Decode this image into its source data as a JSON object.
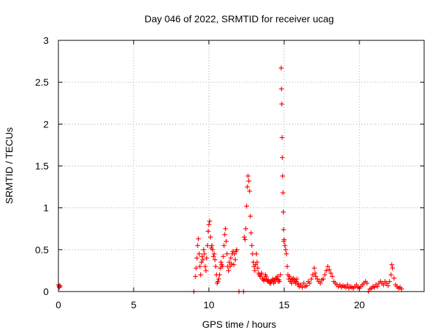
{
  "chart_data": {
    "type": "scatter",
    "title": "Day 046 of 2022, SRMTID for receiver ucag",
    "xlabel": "GPS time / hours",
    "ylabel": "SRMTID / TECUs",
    "xlim": [
      0,
      24.3
    ],
    "ylim": [
      0,
      3
    ],
    "x_ticks": [
      0,
      5,
      10,
      15,
      20
    ],
    "y_ticks": [
      0,
      0.5,
      1,
      1.5,
      2,
      2.5,
      3
    ],
    "x_tick_labels": [
      "0",
      "5",
      "10",
      "15",
      "20"
    ],
    "y_tick_labels": [
      "0",
      "0.5",
      "1",
      "1.5",
      "2",
      "2.5",
      "3"
    ],
    "grid": true,
    "legend": "none",
    "marker": "plus",
    "series_color": "#ff0000",
    "series": [
      {
        "values": [
          [
            0.0,
            0.08
          ],
          [
            0.05,
            0.06
          ],
          [
            0.1,
            0.07
          ],
          [
            0.08,
            0.05
          ],
          [
            9.0,
            0.0
          ],
          [
            9.1,
            0.18
          ],
          [
            9.15,
            0.28
          ],
          [
            9.2,
            0.4
          ],
          [
            9.25,
            0.55
          ],
          [
            9.3,
            0.63
          ],
          [
            9.35,
            0.45
          ],
          [
            9.4,
            0.3
          ],
          [
            9.45,
            0.2
          ],
          [
            9.5,
            0.35
          ],
          [
            9.55,
            0.42
          ],
          [
            9.6,
            0.38
          ],
          [
            9.65,
            0.5
          ],
          [
            9.7,
            0.45
          ],
          [
            9.75,
            0.3
          ],
          [
            9.8,
            0.25
          ],
          [
            9.85,
            0.4
          ],
          [
            9.9,
            0.55
          ],
          [
            9.95,
            0.72
          ],
          [
            10.0,
            0.8
          ],
          [
            10.05,
            0.84
          ],
          [
            10.1,
            0.65
          ],
          [
            10.15,
            0.52
          ],
          [
            10.2,
            0.55
          ],
          [
            10.25,
            0.5
          ],
          [
            10.3,
            0.42
          ],
          [
            10.35,
            0.45
          ],
          [
            10.4,
            0.38
          ],
          [
            10.45,
            0.3
          ],
          [
            10.5,
            0.2
          ],
          [
            10.55,
            0.1
          ],
          [
            10.6,
            0.12
          ],
          [
            10.65,
            0.15
          ],
          [
            10.7,
            0.2
          ],
          [
            10.75,
            0.28
          ],
          [
            10.8,
            0.35
          ],
          [
            10.85,
            0.32
          ],
          [
            10.9,
            0.3
          ],
          [
            10.95,
            0.42
          ],
          [
            11.0,
            0.55
          ],
          [
            11.05,
            0.68
          ],
          [
            11.1,
            0.75
          ],
          [
            11.15,
            0.6
          ],
          [
            11.2,
            0.45
          ],
          [
            11.25,
            0.3
          ],
          [
            11.3,
            0.25
          ],
          [
            11.35,
            0.35
          ],
          [
            11.4,
            0.3
          ],
          [
            11.45,
            0.4
          ],
          [
            11.5,
            0.33
          ],
          [
            11.55,
            0.45
          ],
          [
            11.6,
            0.48
          ],
          [
            11.65,
            0.32
          ],
          [
            11.7,
            0.45
          ],
          [
            11.75,
            0.38
          ],
          [
            11.8,
            0.48
          ],
          [
            11.85,
            0.5
          ],
          [
            12.0,
            0.0
          ],
          [
            12.3,
            0.0
          ],
          [
            12.35,
            0.65
          ],
          [
            12.4,
            0.62
          ],
          [
            12.45,
            0.75
          ],
          [
            12.5,
            1.02
          ],
          [
            12.55,
            1.25
          ],
          [
            12.6,
            1.38
          ],
          [
            12.65,
            1.32
          ],
          [
            12.7,
            1.2
          ],
          [
            12.75,
            0.9
          ],
          [
            12.8,
            0.7
          ],
          [
            12.85,
            0.55
          ],
          [
            12.9,
            0.45
          ],
          [
            12.95,
            0.35
          ],
          [
            13.0,
            0.3
          ],
          [
            13.05,
            0.25
          ],
          [
            13.1,
            0.32
          ],
          [
            13.15,
            0.45
          ],
          [
            13.2,
            0.35
          ],
          [
            13.25,
            0.28
          ],
          [
            13.3,
            0.22
          ],
          [
            13.35,
            0.2
          ],
          [
            13.4,
            0.18
          ],
          [
            13.45,
            0.2
          ],
          [
            13.5,
            0.22
          ],
          [
            13.55,
            0.15
          ],
          [
            13.6,
            0.15
          ],
          [
            13.65,
            0.13
          ],
          [
            13.7,
            0.15
          ],
          [
            13.75,
            0.2
          ],
          [
            13.8,
            0.18
          ],
          [
            13.85,
            0.14
          ],
          [
            13.9,
            0.12
          ],
          [
            13.95,
            0.14
          ],
          [
            14.0,
            0.12
          ],
          [
            14.05,
            0.1
          ],
          [
            14.1,
            0.1
          ],
          [
            14.15,
            0.12
          ],
          [
            14.2,
            0.13
          ],
          [
            14.25,
            0.15
          ],
          [
            14.3,
            0.1
          ],
          [
            14.35,
            0.14
          ],
          [
            14.4,
            0.12
          ],
          [
            14.45,
            0.16
          ],
          [
            14.5,
            0.15
          ],
          [
            14.55,
            0.18
          ],
          [
            14.6,
            0.12
          ],
          [
            14.65,
            0.14
          ],
          [
            14.7,
            0.12
          ],
          [
            14.75,
            0.2
          ],
          [
            14.8,
            2.67
          ],
          [
            14.82,
            2.42
          ],
          [
            14.84,
            2.24
          ],
          [
            14.86,
            1.84
          ],
          [
            14.88,
            1.6
          ],
          [
            14.9,
            1.38
          ],
          [
            14.92,
            1.18
          ],
          [
            14.94,
            0.95
          ],
          [
            14.96,
            0.74
          ],
          [
            14.98,
            0.6
          ],
          [
            15.0,
            0.62
          ],
          [
            15.05,
            0.55
          ],
          [
            15.1,
            0.5
          ],
          [
            15.15,
            0.45
          ],
          [
            15.2,
            0.3
          ],
          [
            15.25,
            0.2
          ],
          [
            15.3,
            0.15
          ],
          [
            15.35,
            0.18
          ],
          [
            15.4,
            0.12
          ],
          [
            15.45,
            0.15
          ],
          [
            15.5,
            0.1
          ],
          [
            15.55,
            0.14
          ],
          [
            15.6,
            0.16
          ],
          [
            15.65,
            0.12
          ],
          [
            15.7,
            0.14
          ],
          [
            15.75,
            0.1
          ],
          [
            15.8,
            0.12
          ],
          [
            15.85,
            0.15
          ],
          [
            15.9,
            0.1
          ],
          [
            15.95,
            0.08
          ],
          [
            16.0,
            0.06
          ],
          [
            16.1,
            0.08
          ],
          [
            16.2,
            0.05
          ],
          [
            16.3,
            0.1
          ],
          [
            16.4,
            0.06
          ],
          [
            16.5,
            0.07
          ],
          [
            16.6,
            0.12
          ],
          [
            16.7,
            0.1
          ],
          [
            16.8,
            0.15
          ],
          [
            16.9,
            0.2
          ],
          [
            17.0,
            0.28
          ],
          [
            17.05,
            0.22
          ],
          [
            17.1,
            0.18
          ],
          [
            17.2,
            0.15
          ],
          [
            17.3,
            0.12
          ],
          [
            17.4,
            0.1
          ],
          [
            17.5,
            0.14
          ],
          [
            17.6,
            0.15
          ],
          [
            17.7,
            0.2
          ],
          [
            17.8,
            0.25
          ],
          [
            17.9,
            0.3
          ],
          [
            18.0,
            0.26
          ],
          [
            18.1,
            0.22
          ],
          [
            18.2,
            0.18
          ],
          [
            18.3,
            0.12
          ],
          [
            18.4,
            0.1
          ],
          [
            18.5,
            0.08
          ],
          [
            18.6,
            0.06
          ],
          [
            18.7,
            0.08
          ],
          [
            18.8,
            0.05
          ],
          [
            18.9,
            0.07
          ],
          [
            19.0,
            0.06
          ],
          [
            19.1,
            0.05
          ],
          [
            19.2,
            0.08
          ],
          [
            19.3,
            0.04
          ],
          [
            19.4,
            0.06
          ],
          [
            19.5,
            0.05
          ],
          [
            19.6,
            0.04
          ],
          [
            19.7,
            0.06
          ],
          [
            19.8,
            0.08
          ],
          [
            19.9,
            0.05
          ],
          [
            20.0,
            0.04
          ],
          [
            20.1,
            0.06
          ],
          [
            20.2,
            0.08
          ],
          [
            20.3,
            0.1
          ],
          [
            20.4,
            0.12
          ],
          [
            20.5,
            0.1
          ],
          [
            20.6,
            0.0
          ],
          [
            20.7,
            0.03
          ],
          [
            20.8,
            0.04
          ],
          [
            20.9,
            0.06
          ],
          [
            21.0,
            0.05
          ],
          [
            21.1,
            0.08
          ],
          [
            21.2,
            0.06
          ],
          [
            21.3,
            0.1
          ],
          [
            21.4,
            0.12
          ],
          [
            21.5,
            0.1
          ],
          [
            21.6,
            0.08
          ],
          [
            21.7,
            0.12
          ],
          [
            21.8,
            0.1
          ],
          [
            21.9,
            0.07
          ],
          [
            22.0,
            0.12
          ],
          [
            22.1,
            0.2
          ],
          [
            22.15,
            0.32
          ],
          [
            22.2,
            0.28
          ],
          [
            22.3,
            0.16
          ],
          [
            22.4,
            0.08
          ],
          [
            22.5,
            0.06
          ],
          [
            22.6,
            0.04
          ],
          [
            22.7,
            0.05
          ],
          [
            22.8,
            0.03
          ]
        ]
      }
    ]
  }
}
